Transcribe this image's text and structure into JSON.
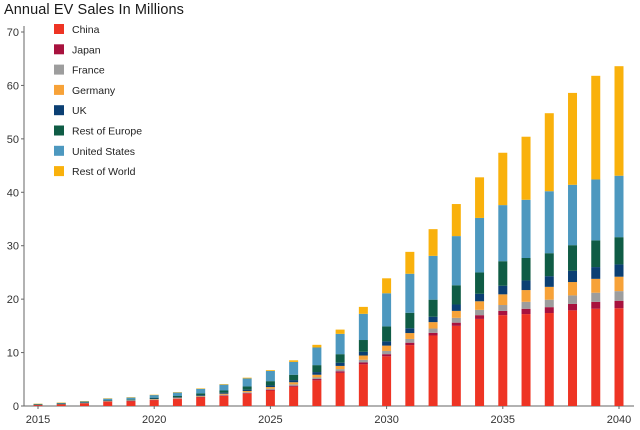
{
  "chart_data": {
    "type": "bar",
    "stacked": true,
    "title": "Annual EV Sales In Millions",
    "xlabel": "",
    "ylabel": "",
    "ylim": [
      0,
      70
    ],
    "yticks": [
      0,
      10,
      20,
      30,
      40,
      50,
      60,
      70
    ],
    "xticks": [
      2015,
      2020,
      2025,
      2030,
      2035,
      2040
    ],
    "legend_position": "top-left",
    "grid": false,
    "x": [
      2015,
      2016,
      2017,
      2018,
      2019,
      2020,
      2021,
      2022,
      2023,
      2024,
      2025,
      2026,
      2027,
      2028,
      2029,
      2030,
      2031,
      2032,
      2033,
      2034,
      2035,
      2036,
      2037,
      2038,
      2039,
      2040
    ],
    "series": [
      {
        "name": "China",
        "color": "#ee3424",
        "values": [
          0.2,
          0.3,
          0.5,
          0.8,
          0.9,
          1.1,
          1.3,
          1.6,
          1.9,
          2.3,
          2.9,
          3.6,
          4.8,
          6.2,
          7.8,
          9.3,
          11.4,
          13.2,
          15.0,
          16.3,
          17.0,
          17.2,
          17.4,
          17.9,
          18.2,
          18.3
        ]
      },
      {
        "name": "Japan",
        "color": "#a8123e",
        "values": [
          0.02,
          0.03,
          0.03,
          0.05,
          0.05,
          0.06,
          0.07,
          0.08,
          0.1,
          0.12,
          0.15,
          0.2,
          0.25,
          0.3,
          0.35,
          0.4,
          0.45,
          0.5,
          0.6,
          0.7,
          0.8,
          1.0,
          1.1,
          1.2,
          1.3,
          1.4
        ]
      },
      {
        "name": "France",
        "color": "#9d9d9d",
        "values": [
          0.02,
          0.03,
          0.04,
          0.05,
          0.06,
          0.07,
          0.08,
          0.1,
          0.12,
          0.15,
          0.2,
          0.25,
          0.3,
          0.4,
          0.5,
          0.6,
          0.7,
          0.8,
          0.9,
          1.0,
          1.1,
          1.3,
          1.4,
          1.6,
          1.7,
          1.8
        ]
      },
      {
        "name": "Germany",
        "color": "#f7a238",
        "values": [
          0.02,
          0.03,
          0.04,
          0.05,
          0.06,
          0.08,
          0.1,
          0.13,
          0.18,
          0.24,
          0.3,
          0.4,
          0.5,
          0.6,
          0.8,
          1.0,
          1.1,
          1.2,
          1.3,
          1.6,
          2.0,
          2.2,
          2.4,
          2.5,
          2.6,
          2.7
        ]
      },
      {
        "name": "UK",
        "color": "#0b3f73",
        "values": [
          0.02,
          0.03,
          0.04,
          0.06,
          0.07,
          0.1,
          0.12,
          0.15,
          0.2,
          0.25,
          0.3,
          0.4,
          0.5,
          0.6,
          0.7,
          0.8,
          0.9,
          1.0,
          1.2,
          1.4,
          1.6,
          1.8,
          2.0,
          2.1,
          2.2,
          2.3
        ]
      },
      {
        "name": "Rest of Europe",
        "color": "#0f5c45",
        "values": [
          0.02,
          0.03,
          0.05,
          0.08,
          0.1,
          0.15,
          0.2,
          0.3,
          0.4,
          0.6,
          0.8,
          1.0,
          1.3,
          1.6,
          2.2,
          2.8,
          2.9,
          3.2,
          3.6,
          4.0,
          4.6,
          4.2,
          4.3,
          4.8,
          5.0,
          5.1
        ]
      },
      {
        "name": "United States",
        "color": "#4d98bf",
        "values": [
          0.1,
          0.15,
          0.2,
          0.3,
          0.35,
          0.5,
          0.65,
          0.85,
          1.1,
          1.5,
          1.9,
          2.4,
          3.3,
          3.8,
          4.9,
          6.2,
          7.3,
          8.2,
          9.2,
          10.2,
          10.5,
          10.9,
          11.6,
          11.3,
          11.4,
          11.5
        ]
      },
      {
        "name": "Rest of World",
        "color": "#f9b10c",
        "values": [
          0.02,
          0.03,
          0.04,
          0.05,
          0.05,
          0.05,
          0.07,
          0.09,
          0.1,
          0.14,
          0.15,
          0.3,
          0.5,
          0.8,
          1.3,
          2.8,
          4.1,
          5.0,
          6.0,
          7.6,
          9.8,
          11.8,
          14.6,
          17.2,
          19.4,
          20.5
        ]
      }
    ]
  }
}
